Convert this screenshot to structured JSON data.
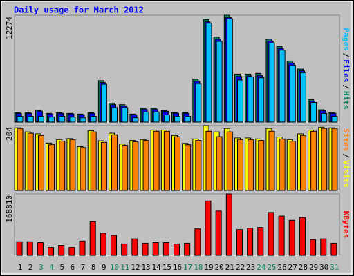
{
  "title": "Daily usage for March 2012",
  "chart_data": [
    {
      "type": "bar",
      "ylim": [
        0,
        12274
      ],
      "yticks": [
        12274
      ],
      "legend_separator": "/",
      "series": [
        {
          "name": "Hits",
          "color": "#00805c",
          "values": [
            1085,
            1085,
            1336,
            1002,
            1085,
            1002,
            918,
            1085,
            4759,
            2171,
            2004,
            918,
            1586,
            1586,
            1336,
            1085,
            1085,
            4926,
            11773,
            9769,
            12274,
            5511,
            5511,
            5594,
            9519,
            8684,
            7014,
            6095,
            2588,
            1419,
            1085
          ]
        },
        {
          "name": "Files",
          "color": "#0000ff",
          "values": [
            1000,
            1000,
            1250,
            940,
            1000,
            940,
            850,
            1000,
            4550,
            2000,
            1850,
            850,
            1450,
            1450,
            1250,
            1000,
            1000,
            4680,
            11500,
            9500,
            12000,
            5250,
            5300,
            5350,
            9300,
            8450,
            6780,
            5880,
            2420,
            1300,
            1000
          ]
        },
        {
          "name": "Pages",
          "color": "#00c0ff",
          "values": [
            668,
            668,
            668,
            585,
            668,
            585,
            501,
            668,
            4342,
            1670,
            1670,
            501,
            1169,
            1169,
            835,
            668,
            668,
            4425,
            11356,
            9268,
            11856,
            4843,
            5177,
            5093,
            9101,
            8266,
            6513,
            5678,
            2254,
            1002,
            668
          ]
        }
      ]
    },
    {
      "type": "bar",
      "ylim": [
        0,
        204
      ],
      "yticks": [
        204
      ],
      "legend_separator": "/",
      "series": [
        {
          "name": "Visits",
          "color": "#ffff00",
          "values": [
            197,
            184,
            178,
            149,
            160,
            163,
            138,
            188,
            156,
            180,
            146,
            157,
            160,
            190,
            190,
            173,
            148,
            162,
            204,
            184,
            195,
            165,
            165,
            162,
            195,
            168,
            160,
            178,
            190,
            199,
            197
          ]
        },
        {
          "name": "Sites",
          "color": "#ff8000",
          "values": [
            195,
            180,
            173,
            144,
            155,
            160,
            135,
            184,
            151,
            175,
            142,
            153,
            157,
            186,
            186,
            169,
            144,
            157,
            186,
            169,
            184,
            160,
            160,
            157,
            186,
            162,
            155,
            173,
            186,
            195,
            195
          ]
        }
      ]
    },
    {
      "type": "bar",
      "ylim": [
        0,
        168810
      ],
      "yticks": [
        168810
      ],
      "categories": [
        "1",
        "2",
        "3",
        "4",
        "5",
        "6",
        "7",
        "8",
        "9",
        "10",
        "11",
        "12",
        "13",
        "14",
        "15",
        "16",
        "17",
        "18",
        "19",
        "20",
        "21",
        "22",
        "23",
        "24",
        "25",
        "26",
        "27",
        "28",
        "29",
        "30",
        "31"
      ],
      "category_colors": [
        "#000000",
        "#000000",
        "#00805c",
        "#00805c",
        "#000000",
        "#000000",
        "#000000",
        "#000000",
        "#000000",
        "#00805c",
        "#00805c",
        "#000000",
        "#000000",
        "#000000",
        "#000000",
        "#000000",
        "#00805c",
        "#00805c",
        "#000000",
        "#000000",
        "#000000",
        "#000000",
        "#000000",
        "#00805c",
        "#00805c",
        "#000000",
        "#000000",
        "#000000",
        "#000000",
        "#000000",
        "#00805c"
      ],
      "series": [
        {
          "name": "KBytes",
          "color": "#ff0000",
          "values": [
            37297,
            37297,
            35334,
            21593,
            27482,
            21593,
            39260,
            92257,
            60851,
            54962,
            31407,
            45147,
            33370,
            35334,
            35334,
            31407,
            33370,
            72628,
            149181,
            121700,
            168810,
            70665,
            74591,
            76554,
            117775,
            107961,
            96184,
            104035,
            43184,
            45147,
            33370
          ]
        }
      ]
    }
  ]
}
